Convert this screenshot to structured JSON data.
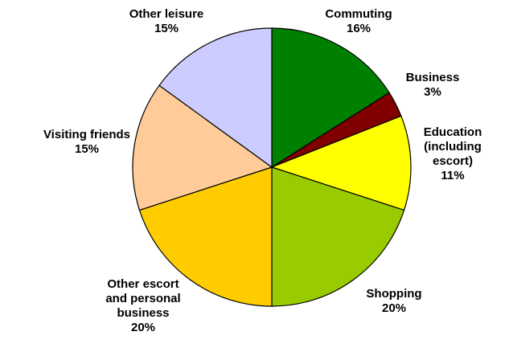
{
  "chart_data": {
    "type": "pie",
    "title": "",
    "start_angle": "12 o'clock",
    "direction": "clockwise",
    "slices": [
      {
        "name": "Commuting",
        "label_lines": [
          "Commuting",
          "16%"
        ],
        "value": 16,
        "color": "#008000"
      },
      {
        "name": "Business",
        "label_lines": [
          "Business",
          "3%"
        ],
        "value": 3,
        "color": "#800000"
      },
      {
        "name": "Education (including escort)",
        "label_lines": [
          "Education",
          "(including",
          "escort)",
          "11%"
        ],
        "value": 11,
        "color": "#FFFF00"
      },
      {
        "name": "Shopping",
        "label_lines": [
          "Shopping",
          "20%"
        ],
        "value": 20,
        "color": "#99CC00"
      },
      {
        "name": "Other escort and personal business",
        "label_lines": [
          "Other escort",
          "and personal",
          "business",
          "20%"
        ],
        "value": 20,
        "color": "#FFCC00"
      },
      {
        "name": "Visiting friends",
        "label_lines": [
          "Visiting friends",
          "15%"
        ],
        "value": 15,
        "color": "#FFCC99"
      },
      {
        "name": "Other leisure",
        "label_lines": [
          "Other leisure",
          "15%"
        ],
        "value": 15,
        "color": "#CCCCFF"
      }
    ]
  }
}
